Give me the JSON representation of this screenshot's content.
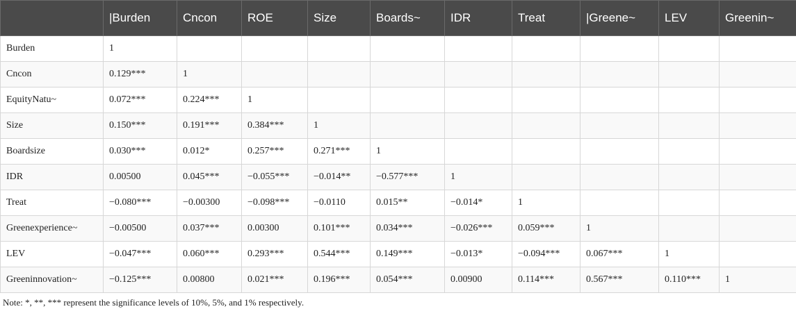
{
  "header": [
    "",
    "|Burden",
    "Cncon",
    "ROE",
    "Size",
    "Boards~",
    "IDR",
    "Treat",
    "|Greene~",
    "LEV",
    "Greenin~"
  ],
  "rows": [
    [
      "Burden",
      "1",
      "",
      "",
      "",
      "",
      "",
      "",
      "",
      "",
      ""
    ],
    [
      "Cncon",
      "0.129***",
      "1",
      "",
      "",
      "",
      "",
      "",
      "",
      "",
      ""
    ],
    [
      "EquityNatu~",
      "0.072***",
      "0.224***",
      "1",
      "",
      "",
      "",
      "",
      "",
      "",
      ""
    ],
    [
      "Size",
      "0.150***",
      "0.191***",
      "0.384***",
      "1",
      "",
      "",
      "",
      "",
      "",
      ""
    ],
    [
      "Boardsize",
      "0.030***",
      "0.012*",
      "0.257***",
      "0.271***",
      "1",
      "",
      "",
      "",
      "",
      ""
    ],
    [
      "IDR",
      "0.00500",
      "0.045***",
      "−0.055***",
      "−0.014**",
      "−0.577***",
      "1",
      "",
      "",
      "",
      ""
    ],
    [
      "Treat",
      "−0.080***",
      "−0.00300",
      "−0.098***",
      "−0.0110",
      "0.015**",
      "−0.014*",
      "1",
      "",
      "",
      ""
    ],
    [
      "Greenexperience~",
      "−0.00500",
      "0.037***",
      "0.00300",
      "0.101***",
      "0.034***",
      "−0.026***",
      "0.059***",
      "1",
      "",
      ""
    ],
    [
      "LEV",
      "−0.047***",
      "0.060***",
      "0.293***",
      "0.544***",
      "0.149***",
      "−0.013*",
      "−0.094***",
      "0.067***",
      "1",
      ""
    ],
    [
      "Greeninnovation~",
      "−0.125***",
      "0.00800",
      "0.021***",
      "0.196***",
      "0.054***",
      "0.00900",
      "0.114***",
      "0.567***",
      "0.110***",
      "1"
    ]
  ],
  "note": "Note: *, **, *** represent the significance levels of 10%, 5%, and 1% respectively."
}
